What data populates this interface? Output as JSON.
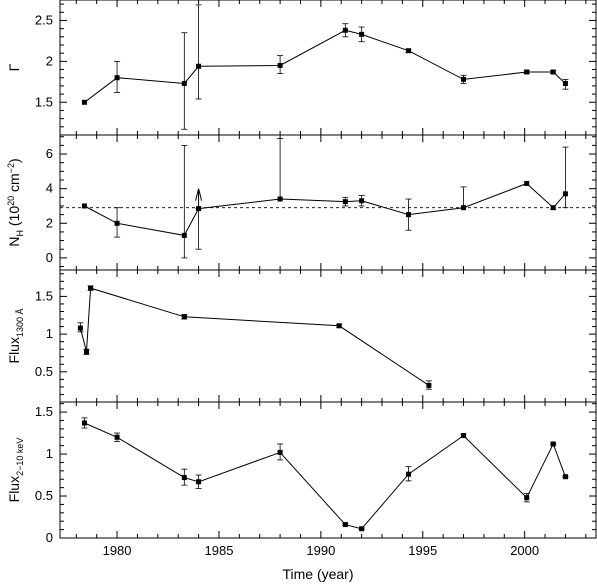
{
  "chart_data": {
    "type": "scatter",
    "shared_x": {
      "xlabel": "Time (year)",
      "xlim": [
        1977.2,
        2003.5
      ],
      "xticks_major": [
        1980,
        1985,
        1990,
        1995,
        2000
      ],
      "xticks_minor_step": 1
    },
    "panels": [
      {
        "ylabel_main": "Γ",
        "ylabel_sub": "",
        "ylim": [
          1.1,
          2.75
        ],
        "yticks_major": [
          1.5,
          2,
          2.5
        ],
        "ytick_labels": [
          "1.5",
          "2",
          "2.5"
        ],
        "yticks_minor_step": 0.1,
        "connected": true,
        "points": [
          {
            "x": 1978.4,
            "y": 1.5,
            "lo": 1.5,
            "hi": 1.5
          },
          {
            "x": 1980.0,
            "y": 1.8,
            "lo": 1.62,
            "hi": 2.0
          },
          {
            "x": 1983.3,
            "y": 1.73,
            "lo": 1.17,
            "hi": 2.35
          },
          {
            "x": 1984.0,
            "y": 1.94,
            "lo": 1.54,
            "hi": 2.69
          },
          {
            "x": 1988.0,
            "y": 1.95,
            "lo": 1.85,
            "hi": 2.07
          },
          {
            "x": 1991.2,
            "y": 2.38,
            "lo": 2.3,
            "hi": 2.46
          },
          {
            "x": 1992.0,
            "y": 2.33,
            "lo": 2.24,
            "hi": 2.42
          },
          {
            "x": 1994.3,
            "y": 2.13,
            "lo": 2.11,
            "hi": 2.15
          },
          {
            "x": 1997.0,
            "y": 1.78,
            "lo": 1.73,
            "hi": 1.83
          },
          {
            "x": 2000.1,
            "y": 1.87,
            "lo": 1.85,
            "hi": 1.89
          },
          {
            "x": 2001.4,
            "y": 1.87,
            "lo": 1.85,
            "hi": 1.89
          },
          {
            "x": 2002.0,
            "y": 1.73,
            "lo": 1.66,
            "hi": 1.78
          }
        ]
      },
      {
        "ylabel_main": "N",
        "ylabel_sub": "H",
        "ylabel_rest": "(10",
        "ylabel_sup": "20",
        "ylabel_unit": "cm",
        "ylabel_unit_sup": "−2",
        "ylabel_close": ")",
        "ylim": [
          -0.7,
          7.1
        ],
        "yticks_major": [
          0,
          2,
          4,
          6
        ],
        "ytick_labels": [
          "0",
          "2",
          "4",
          "6"
        ],
        "yticks_minor_step": 0.5,
        "connected": true,
        "reference_line": 2.9,
        "upper_limit_x": 1984.0,
        "upper_limit_y": 4.0,
        "points": [
          {
            "x": 1978.4,
            "y": 3.0,
            "lo": 3.0,
            "hi": 3.0
          },
          {
            "x": 1980.0,
            "y": 2.0,
            "lo": 1.2,
            "hi": 2.9
          },
          {
            "x": 1983.3,
            "y": 1.3,
            "lo": 0.0,
            "hi": 6.5
          },
          {
            "x": 1984.0,
            "y": 2.85,
            "lo": 0.5,
            "hi": 2.85
          },
          {
            "x": 1988.0,
            "y": 3.4,
            "lo": 3.4,
            "hi": 6.9
          },
          {
            "x": 1991.2,
            "y": 3.25,
            "lo": 3.0,
            "hi": 3.5
          },
          {
            "x": 1992.0,
            "y": 3.3,
            "lo": 3.0,
            "hi": 3.6
          },
          {
            "x": 1994.3,
            "y": 2.5,
            "lo": 1.6,
            "hi": 3.4
          },
          {
            "x": 1997.0,
            "y": 2.9,
            "lo": 2.9,
            "hi": 4.1
          },
          {
            "x": 2000.1,
            "y": 4.3,
            "lo": 4.3,
            "hi": 4.3
          },
          {
            "x": 2001.4,
            "y": 2.9,
            "lo": 2.8,
            "hi": 3.0
          },
          {
            "x": 2002.0,
            "y": 3.7,
            "lo": 2.9,
            "hi": 6.4
          }
        ]
      },
      {
        "ylabel_main": "Flux",
        "ylabel_sub": "1300 Å",
        "ylim": [
          0.1,
          1.85
        ],
        "yticks_major": [
          0.5,
          1,
          1.5
        ],
        "ytick_labels": [
          "0.5",
          "1",
          "1.5"
        ],
        "yticks_minor_step": 0.1,
        "connected": true,
        "points": [
          {
            "x": 1978.2,
            "y": 1.08,
            "lo": 1.03,
            "hi": 1.15
          },
          {
            "x": 1978.5,
            "y": 0.77,
            "lo": 0.73,
            "hi": 0.8
          },
          {
            "x": 1978.7,
            "y": 1.61,
            "lo": 1.58,
            "hi": 1.64
          },
          {
            "x": 1983.3,
            "y": 1.23,
            "lo": 1.2,
            "hi": 1.26
          },
          {
            "x": 1990.9,
            "y": 1.11,
            "lo": 1.09,
            "hi": 1.13
          },
          {
            "x": 1995.3,
            "y": 0.32,
            "lo": 0.27,
            "hi": 0.38
          }
        ]
      },
      {
        "ylabel_main": "Flux",
        "ylabel_sub": "2−10 keV",
        "ylim": [
          0,
          1.62
        ],
        "yticks_major": [
          0,
          0.5,
          1,
          1.5
        ],
        "ytick_labels": [
          "0",
          "0.5",
          "1",
          "1.5"
        ],
        "yticks_minor_step": 0.1,
        "connected": true,
        "points": [
          {
            "x": 1978.4,
            "y": 1.37,
            "lo": 1.31,
            "hi": 1.43
          },
          {
            "x": 1980.0,
            "y": 1.2,
            "lo": 1.15,
            "hi": 1.25
          },
          {
            "x": 1983.3,
            "y": 0.72,
            "lo": 0.63,
            "hi": 0.82
          },
          {
            "x": 1984.0,
            "y": 0.67,
            "lo": 0.59,
            "hi": 0.75
          },
          {
            "x": 1988.0,
            "y": 1.02,
            "lo": 0.93,
            "hi": 1.12
          },
          {
            "x": 1991.2,
            "y": 0.16,
            "lo": 0.15,
            "hi": 0.17
          },
          {
            "x": 1992.0,
            "y": 0.11,
            "lo": 0.1,
            "hi": 0.12
          },
          {
            "x": 1994.3,
            "y": 0.76,
            "lo": 0.68,
            "hi": 0.85
          },
          {
            "x": 1997.0,
            "y": 1.22,
            "lo": 1.2,
            "hi": 1.24
          },
          {
            "x": 2000.1,
            "y": 0.48,
            "lo": 0.43,
            "hi": 0.53
          },
          {
            "x": 2001.4,
            "y": 1.12,
            "lo": 1.11,
            "hi": 1.13
          },
          {
            "x": 2002.0,
            "y": 0.73,
            "lo": 0.72,
            "hi": 0.74
          }
        ]
      }
    ]
  }
}
